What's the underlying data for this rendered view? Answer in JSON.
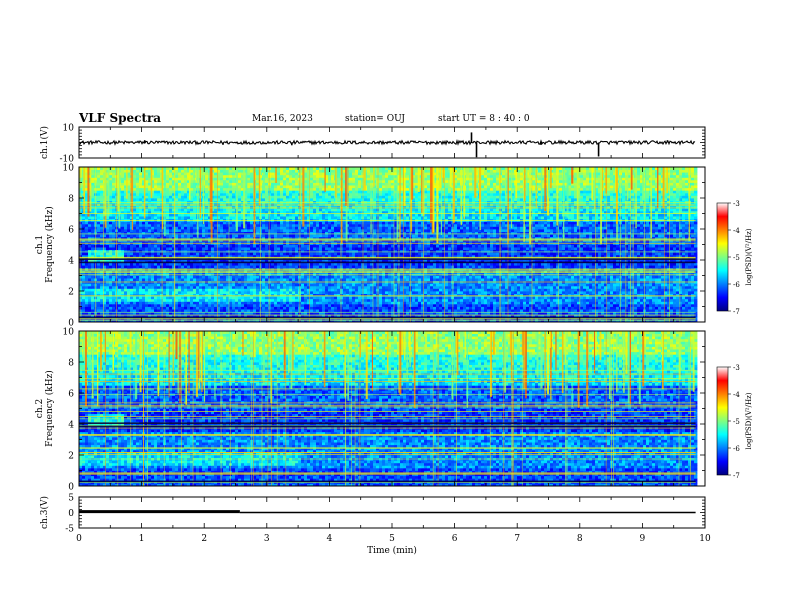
{
  "header": {
    "title": "VLF Spectra",
    "date": "Mar.16, 2023",
    "station": "station= OUJ",
    "start": "start  UT =  8 : 40 : 0"
  },
  "chart_data": [
    {
      "type": "line",
      "name": "ch1-waveform",
      "ylabel": "ch.1(V)",
      "xlim": [
        0,
        10
      ],
      "ylim": [
        -10,
        10
      ],
      "yticks": [
        "10",
        "-10"
      ],
      "baseline": 0,
      "spikes": [
        {
          "x": 1.05,
          "y": 1.5
        },
        {
          "x": 2.3,
          "y": -1.5
        },
        {
          "x": 3.4,
          "y": -1.8
        },
        {
          "x": 6.27,
          "y": 6.5
        },
        {
          "x": 6.35,
          "y": -9.5
        },
        {
          "x": 7.38,
          "y": -1.5
        },
        {
          "x": 8.3,
          "y": -9.0
        },
        {
          "x": 9.4,
          "y": 1.5
        }
      ],
      "data_end": 9.85
    },
    {
      "type": "heatmap",
      "name": "ch1-spectrogram",
      "ylabel": "ch.1\nFrequency (kHz)",
      "xlim": [
        0,
        10
      ],
      "ylim": [
        0,
        10
      ],
      "yticks": [
        "0",
        "2",
        "4",
        "6",
        "8",
        "10"
      ],
      "data_end": 9.85,
      "colorbar": {
        "label": "log(PSD)(V²/Hz)",
        "range": [
          -7,
          -3
        ],
        "ticks": [
          "-3",
          "-4",
          "-5",
          "-6",
          "-7"
        ]
      }
    },
    {
      "type": "heatmap",
      "name": "ch2-spectrogram",
      "ylabel": "ch.2\nFrequency (kHz)",
      "xlim": [
        0,
        10
      ],
      "ylim": [
        0,
        10
      ],
      "yticks": [
        "0",
        "2",
        "4",
        "6",
        "8",
        "10"
      ],
      "data_end": 9.85,
      "colorbar": {
        "label": "log(PSD)(V²/Hz)",
        "range": [
          -7,
          -3
        ],
        "ticks": [
          "-3",
          "-4",
          "-5",
          "-6",
          "-7"
        ]
      }
    },
    {
      "type": "line",
      "name": "ch3-signal",
      "ylabel": "ch.3(V)",
      "xlim": [
        0,
        10
      ],
      "ylim": [
        -5,
        5
      ],
      "yticks": [
        "5",
        "0",
        "-5"
      ],
      "segments": [
        {
          "x0": 0,
          "x1": 2.57,
          "y": 0.3,
          "thick": true
        },
        {
          "x0": 2.57,
          "x1": 9.85,
          "y": 0.0,
          "thick": false
        }
      ],
      "xlabel": "Time (min)",
      "xticks": [
        "0",
        "1",
        "2",
        "3",
        "4",
        "5",
        "6",
        "7",
        "8",
        "9",
        "10"
      ]
    }
  ]
}
